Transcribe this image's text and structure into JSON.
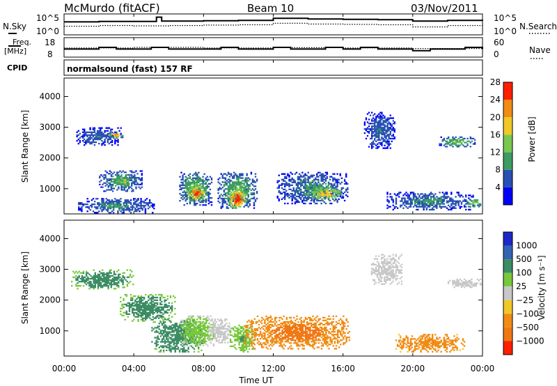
{
  "header": {
    "station": "McMurdo (fitACF)",
    "beam": "Beam 10",
    "date": "03/Nov/2011"
  },
  "noise_panel": {
    "left_label": "N.Sky",
    "right_label": "N.Search",
    "left_ticks": [
      "10^5",
      "10^0"
    ],
    "right_ticks": [
      "10^5",
      "10^0"
    ]
  },
  "freq_panel": {
    "left_label_line1": "Freq.",
    "left_label_line2": "[MHz]",
    "left_ticks": [
      "18",
      "8"
    ],
    "right_label": "Nave",
    "right_ticks": [
      "60",
      "0"
    ]
  },
  "cpid": {
    "label": "CPID",
    "text": "normalsound (fast) 157 RF"
  },
  "power_panel": {
    "ylabel": "Slant Range [km]",
    "yticks": [
      "1000",
      "2000",
      "3000",
      "4000"
    ],
    "colorbar_label": "Power [dB]",
    "colorbar_ticks": [
      "4",
      "8",
      "12",
      "16",
      "20",
      "24",
      "28"
    ],
    "colors": [
      "#0000ff",
      "#2850b4",
      "#3c9c64",
      "#78c850",
      "#f0c828",
      "#f08c14",
      "#ff1e00"
    ]
  },
  "velocity_panel": {
    "ylabel": "Slant Range [km]",
    "yticks": [
      "1000",
      "2000",
      "3000",
      "4000"
    ],
    "colorbar_label": "Velocity [m s⁻¹]",
    "colorbar_ticks": [
      "1000",
      "500",
      "100",
      "25",
      "−25",
      "−100",
      "−500",
      "−1000"
    ],
    "colors": [
      "#1e28c8",
      "#3264b4",
      "#3c8c64",
      "#78c83c",
      "#c8c8c8",
      "#f0c828",
      "#f08c14",
      "#f07814",
      "#ff1e00"
    ]
  },
  "time_axis": {
    "ticks": [
      "00:00",
      "04:00",
      "08:00",
      "12:00",
      "16:00",
      "20:00",
      "00:00"
    ],
    "xlabel": "Time UT"
  },
  "chart_data": [
    {
      "type": "line",
      "series": [
        {
          "name": "N.Sky",
          "x": [
            0,
            2,
            4,
            5.3,
            5.6,
            8,
            10,
            12,
            14,
            16,
            18,
            20,
            22,
            24
          ],
          "y_log10": [
            3.2,
            3.3,
            3.3,
            4.5,
            3.4,
            3.5,
            3.6,
            4.2,
            4.0,
            3.9,
            3.8,
            3.4,
            3.6,
            3.5
          ]
        },
        {
          "name": "N.Search",
          "x": [
            0,
            2,
            4,
            6,
            8,
            10,
            12,
            14,
            16,
            18,
            20,
            22,
            24
          ],
          "y_log10": [
            2.0,
            2.2,
            2.1,
            2.2,
            2.3,
            2.4,
            2.8,
            2.6,
            2.5,
            2.4,
            1.8,
            2.2,
            2.3
          ]
        }
      ],
      "xlim": [
        0,
        24
      ]
    },
    {
      "type": "line",
      "series": [
        {
          "name": "Freq.",
          "x": [
            0,
            1,
            2,
            3,
            4,
            5,
            6,
            7,
            8,
            9,
            10,
            11,
            12,
            13,
            14,
            15,
            16,
            17,
            18,
            19,
            20,
            21,
            22,
            23,
            24
          ],
          "y": [
            12,
            12,
            13,
            12,
            12,
            13,
            12,
            12,
            12,
            13,
            12,
            12,
            13,
            12,
            12,
            13,
            12,
            13,
            12,
            12,
            11,
            12,
            12,
            13,
            12
          ]
        },
        {
          "name": "Nave",
          "x": [
            0,
            4,
            8,
            12,
            16,
            20,
            24
          ],
          "y": [
            28,
            30,
            28,
            29,
            28,
            26,
            28
          ]
        }
      ],
      "xlim": [
        0,
        24
      ]
    },
    {
      "type": "heatmap",
      "name": "Power [dB]",
      "xlim": [
        0,
        24
      ],
      "ylim": [
        180,
        4600
      ],
      "blobs": [
        {
          "t": [
            0.7,
            3.3
          ],
          "r": [
            2400,
            3000
          ],
          "v": 8
        },
        {
          "t": [
            2.6,
            3.4
          ],
          "r": [
            2650,
            2850
          ],
          "v": 24
        },
        {
          "t": [
            0.8,
            5.2
          ],
          "r": [
            200,
            700
          ],
          "v": 10
        },
        {
          "t": [
            2.0,
            4.5
          ],
          "r": [
            900,
            1600
          ],
          "v": 12
        },
        {
          "t": [
            3.2,
            3.8
          ],
          "r": [
            1100,
            1400
          ],
          "v": 20
        },
        {
          "t": [
            6.6,
            8.5
          ],
          "r": [
            450,
            1550
          ],
          "v": 14
        },
        {
          "t": [
            7.0,
            8.2
          ],
          "r": [
            600,
            1100
          ],
          "v": 28
        },
        {
          "t": [
            8.8,
            11.1
          ],
          "r": [
            350,
            1550
          ],
          "v": 14
        },
        {
          "t": [
            9.4,
            10.5
          ],
          "r": [
            350,
            1000
          ],
          "v": 30
        },
        {
          "t": [
            12.2,
            16.3
          ],
          "r": [
            500,
            1550
          ],
          "v": 10
        },
        {
          "t": [
            14.0,
            16.0
          ],
          "r": [
            600,
            1100
          ],
          "v": 22
        },
        {
          "t": [
            17.2,
            19.0
          ],
          "r": [
            2300,
            3500
          ],
          "v": 8
        },
        {
          "t": [
            18.5,
            23.5
          ],
          "r": [
            300,
            900
          ],
          "v": 10
        },
        {
          "t": [
            21.5,
            23.6
          ],
          "r": [
            2350,
            2700
          ],
          "v": 14
        },
        {
          "t": [
            23.0,
            24
          ],
          "r": [
            400,
            700
          ],
          "v": 16
        }
      ]
    },
    {
      "type": "heatmap",
      "name": "Velocity [m s-1]",
      "xlim": [
        0,
        24
      ],
      "ylim": [
        180,
        4600
      ],
      "blobs": [
        {
          "t": [
            0.4,
            4.0
          ],
          "r": [
            2350,
            3000
          ],
          "v": 150
        },
        {
          "t": [
            3.2,
            6.4
          ],
          "r": [
            1300,
            2200
          ],
          "v": 150
        },
        {
          "t": [
            5.0,
            8.0
          ],
          "r": [
            300,
            1400
          ],
          "v": 200
        },
        {
          "t": [
            6.6,
            8.7
          ],
          "r": [
            500,
            1500
          ],
          "v": 60
        },
        {
          "t": [
            8.2,
            9.6
          ],
          "r": [
            600,
            1400
          ],
          "v": 0
        },
        {
          "t": [
            9.5,
            11.0
          ],
          "r": [
            300,
            1200
          ],
          "v": 80
        },
        {
          "t": [
            10.3,
            16.4
          ],
          "r": [
            400,
            1500
          ],
          "v": -350
        },
        {
          "t": [
            19.0,
            23.0
          ],
          "r": [
            300,
            900
          ],
          "v": -200
        },
        {
          "t": [
            22.0,
            24.0
          ],
          "r": [
            2400,
            2700
          ],
          "v": 0
        },
        {
          "t": [
            17.6,
            19.4
          ],
          "r": [
            2500,
            3500
          ],
          "v": 0
        }
      ]
    }
  ]
}
